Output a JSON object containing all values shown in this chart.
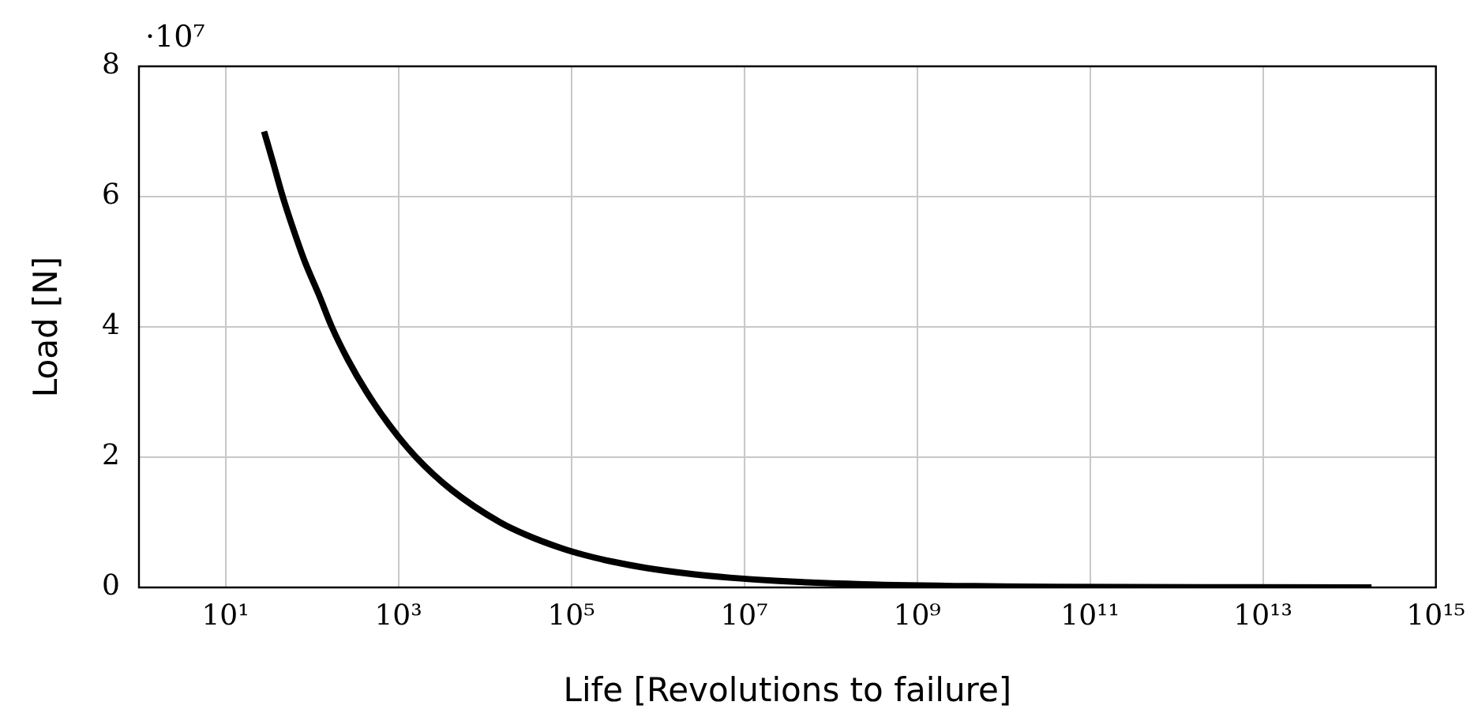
{
  "chart_data": {
    "type": "line",
    "xlabel": "Life [Revolutions to failure]",
    "ylabel": "Load [N]",
    "annotations": [
      "·10⁷"
    ],
    "x": [
      28,
      36,
      46,
      61,
      83,
      120,
      170,
      260,
      430,
      780,
      1600,
      4100,
      15000,
      31000,
      78000,
      140000,
      290000,
      730000,
      2700000,
      6800000,
      25000000,
      240000000,
      4500000000,
      42000000000,
      180000000000000
    ],
    "series": [
      {
        "color": "#000000",
        "values": [
          7,
          6.5,
          6,
          5.5,
          5,
          4.5,
          4,
          3.5,
          3,
          2.5,
          2,
          1.5,
          1,
          0.8,
          0.6,
          0.5,
          0.4,
          0.3,
          0.2,
          0.15,
          0.1,
          0.05,
          0.02,
          0.01,
          0
        ]
      }
    ],
    "xlim": [
      1,
      1000000000000000
    ],
    "xticks": [
      {
        "value": 10,
        "label": "10¹"
      },
      {
        "value": 1000,
        "label": "10³"
      },
      {
        "value": 100000,
        "label": "10⁵"
      },
      {
        "value": 10000000,
        "label": "10⁷"
      },
      {
        "value": 1000000000,
        "label": "10⁹"
      },
      {
        "value": 100000000000,
        "label": "10¹¹"
      },
      {
        "value": 10000000000000,
        "label": "10¹³"
      },
      {
        "value": 1000000000000000,
        "label": "10¹⁵"
      }
    ],
    "ylim": [
      0,
      8
    ],
    "yticks": [
      0,
      2,
      4,
      6,
      8
    ],
    "log": "x",
    "grid": true,
    "marker": "none"
  }
}
